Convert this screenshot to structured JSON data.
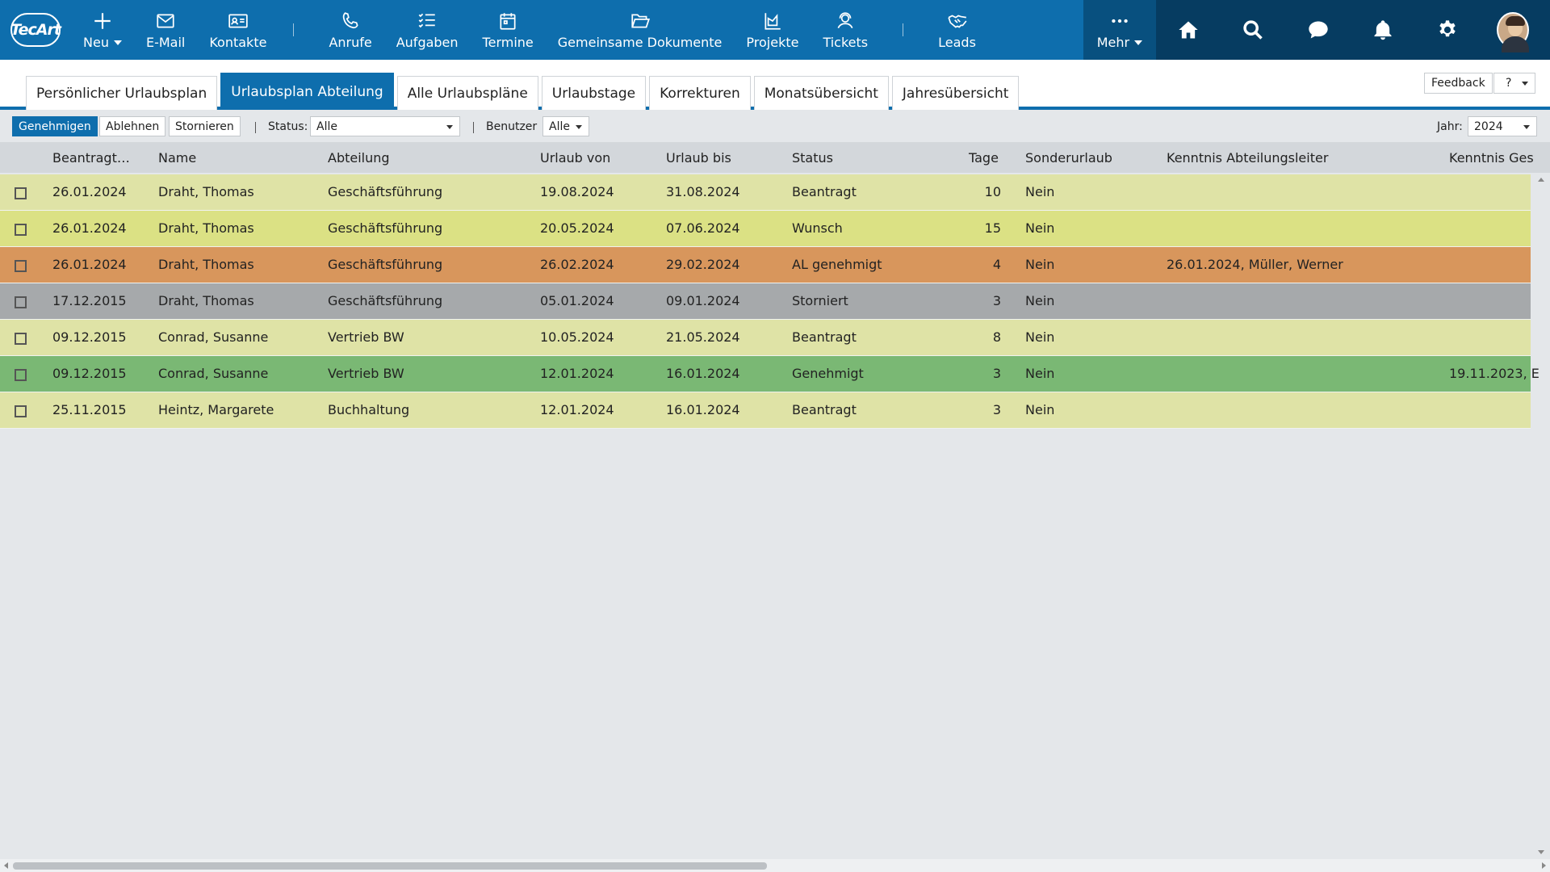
{
  "app": {
    "logo_text": "TecArt"
  },
  "nav": {
    "neu": "Neu",
    "email": "E-Mail",
    "kontakte": "Kontakte",
    "anrufe": "Anrufe",
    "aufgaben": "Aufgaben",
    "termine": "Termine",
    "dokumente": "Gemeinsame Dokumente",
    "projekte": "Projekte",
    "tickets": "Tickets",
    "leads": "Leads",
    "mehr": "Mehr",
    "right_icons": [
      "home-icon",
      "search-icon",
      "chat-icon",
      "bell-icon",
      "gear-icon",
      "avatar"
    ]
  },
  "tabs": [
    {
      "label": "Persönlicher Urlaubsplan",
      "active": false
    },
    {
      "label": "Urlaubsplan Abteilung",
      "active": true
    },
    {
      "label": "Alle Urlaubspläne",
      "active": false
    },
    {
      "label": "Urlaubstage",
      "active": false
    },
    {
      "label": "Korrekturen",
      "active": false
    },
    {
      "label": "Monatsübersicht",
      "active": false
    },
    {
      "label": "Jahresübersicht",
      "active": false
    }
  ],
  "header_right": {
    "feedback": "Feedback",
    "help": "?"
  },
  "toolbar": {
    "approve": "Genehmigen",
    "reject": "Ablehnen",
    "cancel": "Stornieren",
    "status_label": "Status:",
    "status_value": "Alle",
    "user_label": "Benutzer",
    "user_value": "Alle",
    "year_label": "Jahr:",
    "year_value": "2024"
  },
  "columns": {
    "beantragt": "Beantragt…",
    "name": "Name",
    "abteilung": "Abteilung",
    "von": "Urlaub von",
    "bis": "Urlaub bis",
    "status": "Status",
    "tage": "Tage",
    "sonder": "Sonderurlaub",
    "kenntnis_al": "Kenntnis Abteilungsleiter",
    "kenntnis_ges": "Kenntnis Ges"
  },
  "rows": [
    {
      "beantragt": "26.01.2024",
      "name": "Draht, Thomas",
      "abteilung": "Geschäftsführung",
      "von": "19.08.2024",
      "bis": "31.08.2024",
      "status": "Beantragt",
      "tage": "10",
      "sonder": "Nein",
      "kenntnis_al": "",
      "kenntnis_ges": "",
      "color": "#dfe3a6"
    },
    {
      "beantragt": "26.01.2024",
      "name": "Draht, Thomas",
      "abteilung": "Geschäftsführung",
      "von": "20.05.2024",
      "bis": "07.06.2024",
      "status": "Wunsch",
      "tage": "15",
      "sonder": "Nein",
      "kenntnis_al": "",
      "kenntnis_ges": "",
      "color": "#dbe184"
    },
    {
      "beantragt": "26.01.2024",
      "name": "Draht, Thomas",
      "abteilung": "Geschäftsführung",
      "von": "26.02.2024",
      "bis": "29.02.2024",
      "status": "AL genehmigt",
      "tage": "4",
      "sonder": "Nein",
      "kenntnis_al": "26.01.2024, Müller, Werner",
      "kenntnis_ges": "",
      "color": "#d8965c"
    },
    {
      "beantragt": "17.12.2015",
      "name": "Draht, Thomas",
      "abteilung": "Geschäftsführung",
      "von": "05.01.2024",
      "bis": "09.01.2024",
      "status": "Storniert",
      "tage": "3",
      "sonder": "Nein",
      "kenntnis_al": "",
      "kenntnis_ges": "",
      "color": "#a6a9ab"
    },
    {
      "beantragt": "09.12.2015",
      "name": "Conrad, Susanne",
      "abteilung": "Vertrieb BW",
      "von": "10.05.2024",
      "bis": "21.05.2024",
      "status": "Beantragt",
      "tage": "8",
      "sonder": "Nein",
      "kenntnis_al": "",
      "kenntnis_ges": "",
      "color": "#dfe3a6"
    },
    {
      "beantragt": "09.12.2015",
      "name": "Conrad, Susanne",
      "abteilung": "Vertrieb BW",
      "von": "12.01.2024",
      "bis": "16.01.2024",
      "status": "Genehmigt",
      "tage": "3",
      "sonder": "Nein",
      "kenntnis_al": "",
      "kenntnis_ges": "19.11.2023, E",
      "color": "#7ab874"
    },
    {
      "beantragt": "25.11.2015",
      "name": "Heintz, Margarete",
      "abteilung": "Buchhaltung",
      "von": "12.01.2024",
      "bis": "16.01.2024",
      "status": "Beantragt",
      "tage": "3",
      "sonder": "Nein",
      "kenntnis_al": "",
      "kenntnis_ges": "",
      "color": "#dfe3a6"
    }
  ]
}
